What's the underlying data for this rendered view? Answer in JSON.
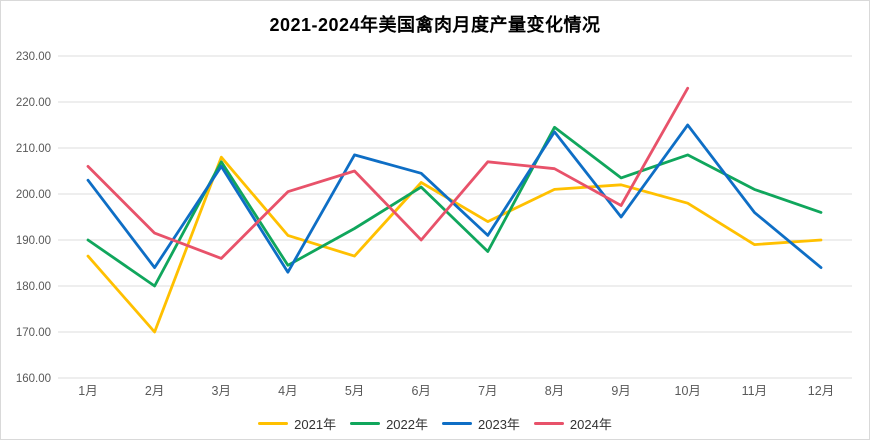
{
  "title": "2021-2024年美国禽肉月度产量变化情况",
  "colors": {
    "background": "#ffffff",
    "border": "#d9d9d9",
    "gridline": "#dcdcdc",
    "axis_label": "#595959",
    "series_2021": "#FFC000",
    "series_2022": "#10A65C",
    "series_2023": "#0E6EC5",
    "series_2024": "#E8526A"
  },
  "chart_data": {
    "type": "line",
    "title": "2021-2024年美国禽肉月度产量变化情况",
    "categories": [
      "1月",
      "2月",
      "3月",
      "4月",
      "5月",
      "6月",
      "7月",
      "8月",
      "9月",
      "10月",
      "11月",
      "12月"
    ],
    "series": [
      {
        "name": "2021年",
        "color": "#FFC000",
        "values": [
          186.5,
          170,
          208,
          191,
          186.5,
          202.5,
          194,
          201,
          202,
          198,
          189,
          190
        ]
      },
      {
        "name": "2022年",
        "color": "#10A65C",
        "values": [
          190,
          180,
          207,
          184.5,
          192.5,
          201.5,
          187.5,
          214.5,
          203.5,
          208.5,
          201,
          196
        ]
      },
      {
        "name": "2023年",
        "color": "#0E6EC5",
        "values": [
          203,
          184,
          206,
          183,
          208.5,
          204.5,
          191,
          213.5,
          195,
          215,
          196,
          184
        ]
      },
      {
        "name": "2024年",
        "color": "#E8526A",
        "values": [
          206,
          191.5,
          186,
          200.5,
          205,
          190,
          207,
          205.5,
          197.5,
          223
        ]
      }
    ],
    "xlabel": "",
    "ylabel": "",
    "ylim": [
      160,
      230
    ],
    "ytick_step": 10,
    "ytick_labels": [
      "160.00",
      "170.00",
      "180.00",
      "190.00",
      "200.00",
      "210.00",
      "220.00",
      "230.00"
    ],
    "grid": "horizontal",
    "legend_position": "bottom",
    "markers": false
  }
}
